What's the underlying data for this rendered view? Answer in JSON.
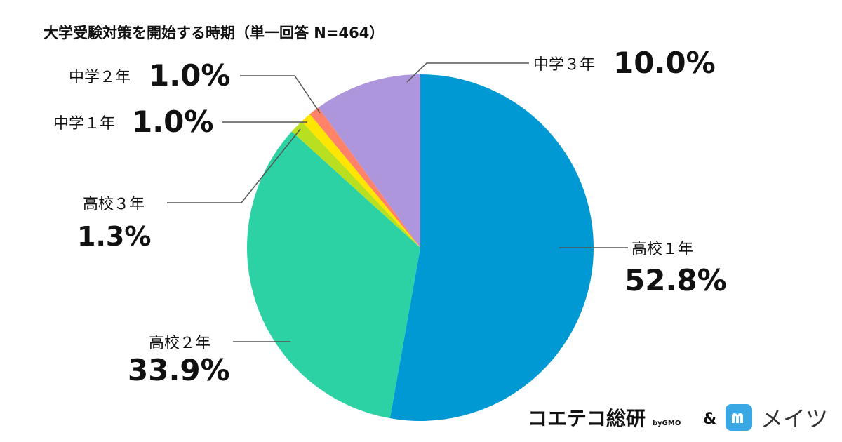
{
  "chart_data": {
    "type": "pie",
    "title": "大学受験対策を開始する時期（単一回答 N=464）",
    "slices": [
      {
        "label": "高校１年",
        "value": 52.8,
        "value_label": "52.8%",
        "color": "#0099D4"
      },
      {
        "label": "高校２年",
        "value": 33.9,
        "value_label": "33.9%",
        "color": "#2DD2A4"
      },
      {
        "label": "高校３年",
        "value": 1.3,
        "value_label": "1.3%",
        "color": "#B8E021"
      },
      {
        "label": "中学１年",
        "value": 1.0,
        "value_label": "1.0%",
        "color": "#FFE600"
      },
      {
        "label": "中学２年",
        "value": 1.0,
        "value_label": "1.0%",
        "color": "#FF8269"
      },
      {
        "label": "中学３年",
        "value": 10.0,
        "value_label": "10.0%",
        "color": "#AE96DC"
      }
    ],
    "start_angle": "12 o'clock",
    "direction": "clockwise"
  },
  "branding": {
    "kotek_name": "コエテコ総研",
    "by_gmo": "byGMO",
    "ampersand": "&",
    "meitsu_name": "メイツ",
    "meitsu_icon_color": "#3AA8E4"
  }
}
